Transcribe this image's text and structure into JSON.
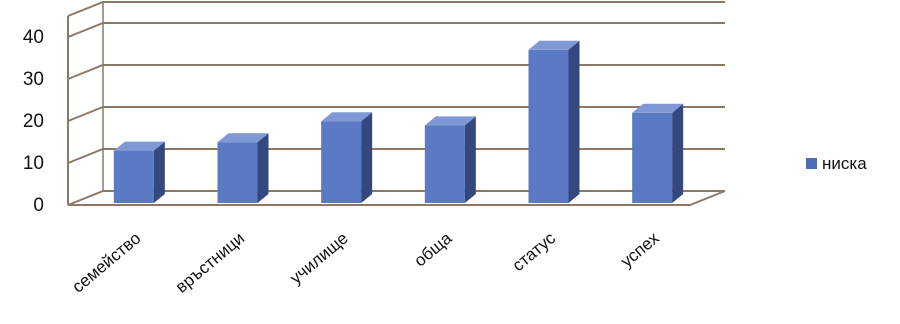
{
  "chart_data": {
    "type": "bar",
    "title": "",
    "xlabel": "",
    "ylabel": "",
    "categories": [
      "семейство",
      "връстници",
      "училище",
      "обща",
      "статус",
      "успех"
    ],
    "series": [
      {
        "name": "ниска",
        "values": [
          12,
          14,
          19,
          18,
          36,
          21
        ],
        "color": "#4F6DB5"
      }
    ],
    "ylim": [
      0,
      45
    ],
    "yticks": [
      "0",
      "10",
      "20",
      "30",
      "40"
    ],
    "grid": true,
    "legend_position": "right",
    "colors": {
      "bar_front": "#5B7AC4",
      "bar_side": "#34487F",
      "bar_top": "#7E99D6",
      "gridline": "#8B7968"
    }
  }
}
